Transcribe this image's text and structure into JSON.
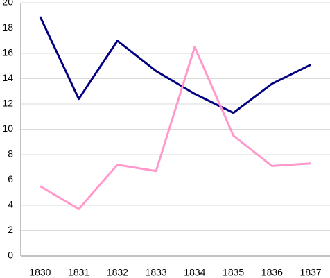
{
  "chart_data": {
    "type": "line",
    "categories": [
      "1830",
      "1831",
      "1832",
      "1833",
      "1834",
      "1835",
      "1836",
      "1837"
    ],
    "series": [
      {
        "color": "#000080",
        "values": [
          18.9,
          12.4,
          17.0,
          14.6,
          12.8,
          11.3,
          13.6,
          15.1
        ]
      },
      {
        "color": "#ff99cc",
        "values": [
          5.5,
          3.7,
          7.2,
          6.7,
          16.5,
          9.5,
          7.1,
          7.3
        ]
      }
    ],
    "ylim": [
      0,
      20
    ],
    "yticks": [
      0,
      2,
      4,
      6,
      8,
      10,
      12,
      14,
      16,
      18,
      20
    ],
    "grid": true
  }
}
